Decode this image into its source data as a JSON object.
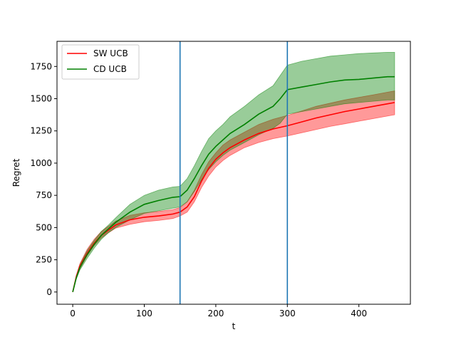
{
  "chart_data": {
    "type": "line",
    "xlabel": "t",
    "ylabel": "Regret",
    "xlim": [
      -22,
      472
    ],
    "ylim": [
      -95,
      1945
    ],
    "xticks": [
      0,
      100,
      200,
      300,
      400
    ],
    "yticks": [
      0,
      250,
      500,
      750,
      1000,
      1250,
      1500,
      1750
    ],
    "vlines": [
      150,
      300
    ],
    "vline_color": "#1f77b4",
    "legend": "top-left",
    "grid": false,
    "series": [
      {
        "name": "SW UCB",
        "color": "#ff0000",
        "x": [
          0,
          5,
          10,
          20,
          30,
          40,
          50,
          60,
          80,
          100,
          120,
          140,
          150,
          160,
          170,
          180,
          190,
          200,
          210,
          220,
          240,
          260,
          280,
          300,
          320,
          340,
          360,
          380,
          400,
          420,
          440,
          450
        ],
        "y": [
          0,
          120,
          200,
          300,
          380,
          440,
          480,
          520,
          560,
          580,
          590,
          605,
          620,
          660,
          740,
          860,
          960,
          1030,
          1080,
          1120,
          1180,
          1230,
          1265,
          1290,
          1320,
          1350,
          1375,
          1400,
          1420,
          1440,
          1460,
          1470
        ],
        "lower": [
          0,
          110,
          180,
          280,
          360,
          420,
          460,
          495,
          525,
          545,
          555,
          570,
          590,
          620,
          700,
          810,
          900,
          970,
          1020,
          1060,
          1120,
          1160,
          1190,
          1210,
          1235,
          1260,
          1285,
          1305,
          1325,
          1345,
          1365,
          1375
        ],
        "upper": [
          0,
          130,
          220,
          330,
          410,
          470,
          510,
          550,
          595,
          615,
          625,
          640,
          655,
          700,
          790,
          910,
          1010,
          1080,
          1140,
          1180,
          1240,
          1300,
          1340,
          1370,
          1405,
          1440,
          1465,
          1490,
          1510,
          1530,
          1550,
          1560
        ]
      },
      {
        "name": "CD UCB",
        "color": "#008000",
        "x": [
          0,
          5,
          10,
          20,
          30,
          40,
          50,
          60,
          80,
          100,
          120,
          140,
          150,
          160,
          170,
          180,
          190,
          200,
          210,
          220,
          240,
          260,
          280,
          290,
          300,
          320,
          340,
          360,
          380,
          400,
          420,
          440,
          450
        ],
        "y": [
          0,
          110,
          190,
          290,
          370,
          440,
          490,
          540,
          620,
          680,
          710,
          735,
          740,
          790,
          880,
          980,
          1070,
          1130,
          1180,
          1230,
          1300,
          1380,
          1440,
          1500,
          1570,
          1590,
          1610,
          1630,
          1645,
          1650,
          1660,
          1670,
          1670
        ],
        "lower": [
          0,
          100,
          170,
          260,
          340,
          410,
          460,
          500,
          560,
          610,
          630,
          650,
          660,
          700,
          780,
          870,
          950,
          1010,
          1060,
          1100,
          1160,
          1220,
          1270,
          1310,
          1380,
          1400,
          1420,
          1440,
          1460,
          1470,
          1480,
          1490,
          1490
        ],
        "upper": [
          0,
          120,
          210,
          320,
          400,
          470,
          520,
          575,
          680,
          750,
          790,
          815,
          820,
          880,
          980,
          1090,
          1190,
          1250,
          1300,
          1360,
          1440,
          1530,
          1600,
          1680,
          1760,
          1790,
          1810,
          1830,
          1840,
          1850,
          1855,
          1860,
          1860
        ]
      }
    ]
  }
}
